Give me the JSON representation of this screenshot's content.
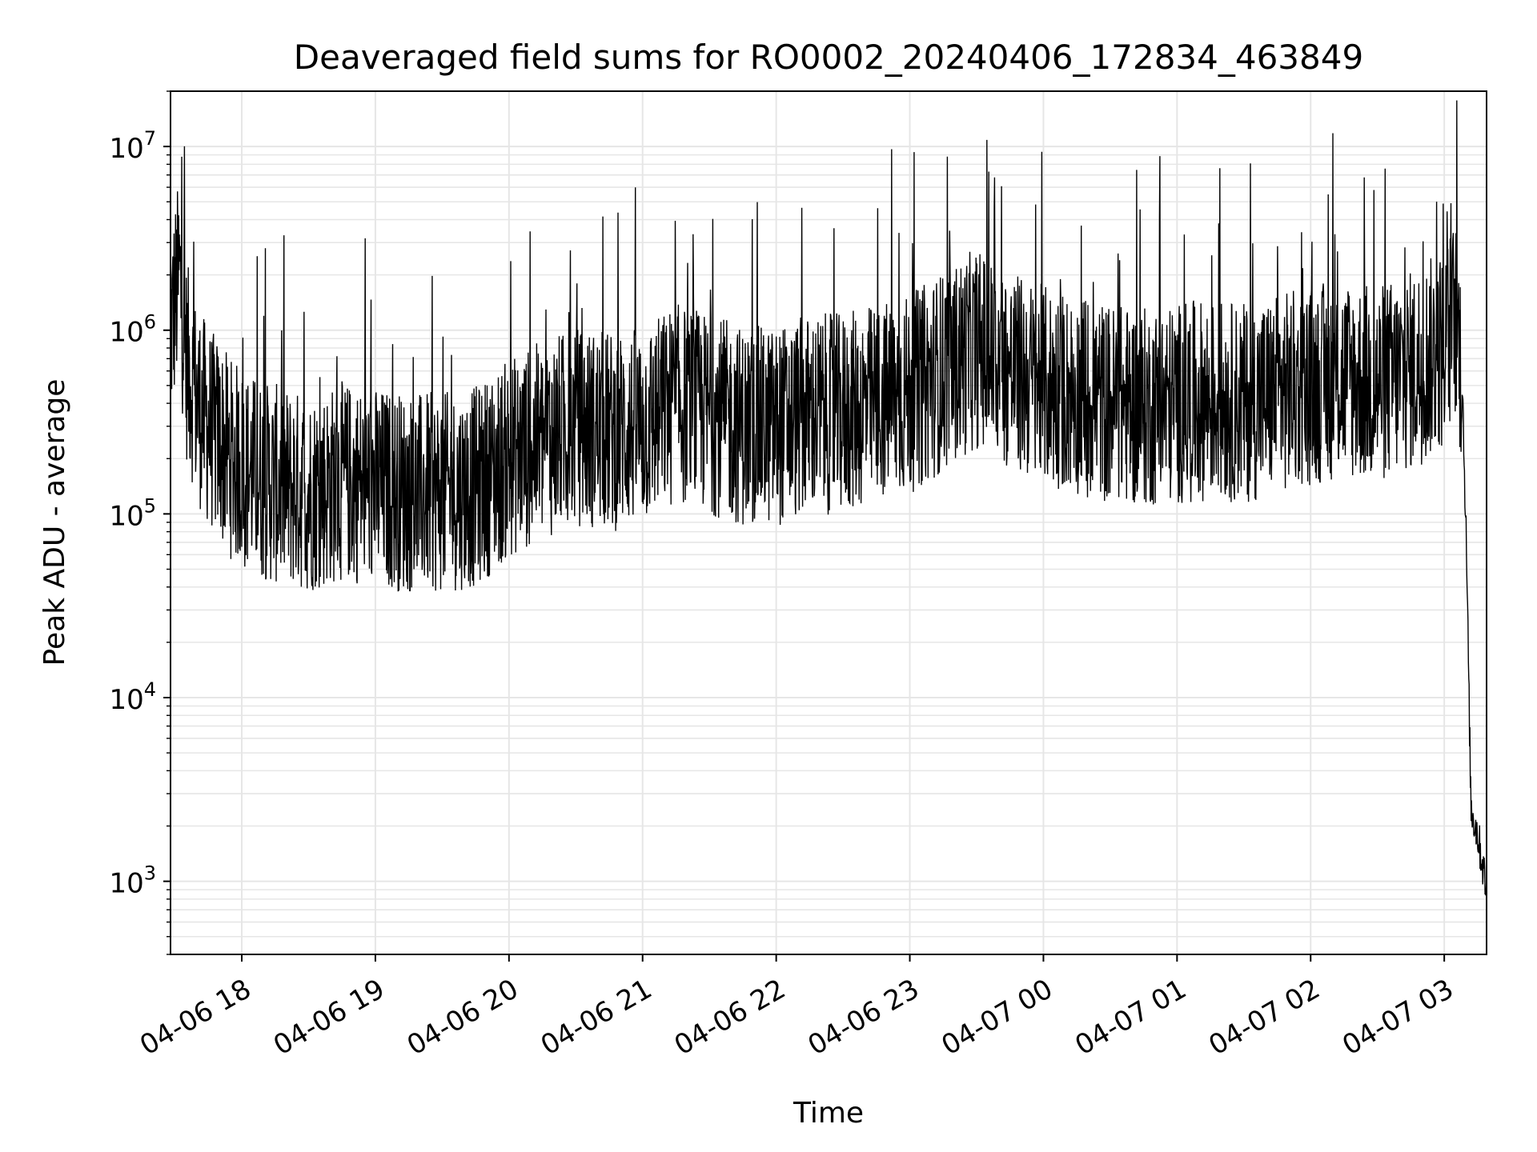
{
  "chart_data": {
    "type": "line",
    "title": "Deaveraged field sums for RO0002_20240406_172834_463849",
    "xlabel": "Time",
    "ylabel": "Peak ADU - average",
    "yscale": "log",
    "ylim": [
      400,
      20000000
    ],
    "xlim": [
      "2024-04-06 17:28",
      "2024-04-07 03:19"
    ],
    "grid": true,
    "line_color": "#000000",
    "grid_color": "#e6e6e6",
    "x_ticks": [
      {
        "label": "04-06 18",
        "value": "2024-04-06 18:00"
      },
      {
        "label": "04-06 19",
        "value": "2024-04-06 19:00"
      },
      {
        "label": "04-06 20",
        "value": "2024-04-06 20:00"
      },
      {
        "label": "04-06 21",
        "value": "2024-04-06 21:00"
      },
      {
        "label": "04-06 22",
        "value": "2024-04-06 22:00"
      },
      {
        "label": "04-06 23",
        "value": "2024-04-06 23:00"
      },
      {
        "label": "04-07 00",
        "value": "2024-04-07 00:00"
      },
      {
        "label": "04-07 01",
        "value": "2024-04-07 01:00"
      },
      {
        "label": "04-07 02",
        "value": "2024-04-07 02:00"
      },
      {
        "label": "04-07 03",
        "value": "2024-04-07 03:00"
      }
    ],
    "y_ticks": [
      {
        "base": "10",
        "exp": "3",
        "value": 1000
      },
      {
        "base": "10",
        "exp": "4",
        "value": 10000
      },
      {
        "base": "10",
        "exp": "5",
        "value": 100000
      },
      {
        "base": "10",
        "exp": "6",
        "value": 1000000
      },
      {
        "base": "10",
        "exp": "7",
        "value": 10000000
      }
    ],
    "series": [
      {
        "x": [
          "2024-04-06 17:28",
          "2024-04-06 17:32",
          "2024-04-06 17:35",
          "2024-04-06 17:40",
          "2024-04-06 17:45",
          "2024-04-06 17:50",
          "2024-04-06 17:55",
          "2024-04-06 18:00",
          "2024-04-06 18:10",
          "2024-04-06 18:20",
          "2024-04-06 18:30",
          "2024-04-06 18:45",
          "2024-04-06 19:00",
          "2024-04-06 19:15",
          "2024-04-06 19:30",
          "2024-04-06 19:45",
          "2024-04-06 20:00",
          "2024-04-06 20:15",
          "2024-04-06 20:30",
          "2024-04-06 20:45",
          "2024-04-06 21:00",
          "2024-04-06 21:15",
          "2024-04-06 21:30",
          "2024-04-06 21:45",
          "2024-04-06 22:00",
          "2024-04-06 22:15",
          "2024-04-06 22:30",
          "2024-04-06 22:45",
          "2024-04-06 23:00",
          "2024-04-06 23:15",
          "2024-04-06 23:30",
          "2024-04-06 23:45",
          "2024-04-07 00:00",
          "2024-04-07 00:15",
          "2024-04-07 00:30",
          "2024-04-07 00:45",
          "2024-04-07 01:00",
          "2024-04-07 01:15",
          "2024-04-07 01:30",
          "2024-04-07 01:45",
          "2024-04-07 02:00",
          "2024-04-07 02:15",
          "2024-04-07 02:30",
          "2024-04-07 02:45",
          "2024-04-07 03:00",
          "2024-04-07 03:05",
          "2024-04-07 03:08",
          "2024-04-07 03:10",
          "2024-04-07 03:12",
          "2024-04-07 03:15",
          "2024-04-07 03:19"
        ],
        "y": [
          1000000,
          2000000,
          700000,
          400000,
          300000,
          250000,
          200000,
          180000,
          150000,
          140000,
          130000,
          150000,
          140000,
          130000,
          130000,
          140000,
          200000,
          250000,
          300000,
          280000,
          300000,
          400000,
          350000,
          300000,
          300000,
          350000,
          350000,
          400000,
          450000,
          600000,
          800000,
          600000,
          500000,
          450000,
          400000,
          380000,
          400000,
          420000,
          400000,
          450000,
          500000,
          550000,
          500000,
          600000,
          800000,
          1200000,
          600000,
          60000,
          2500,
          1800,
          900
        ]
      }
    ]
  }
}
